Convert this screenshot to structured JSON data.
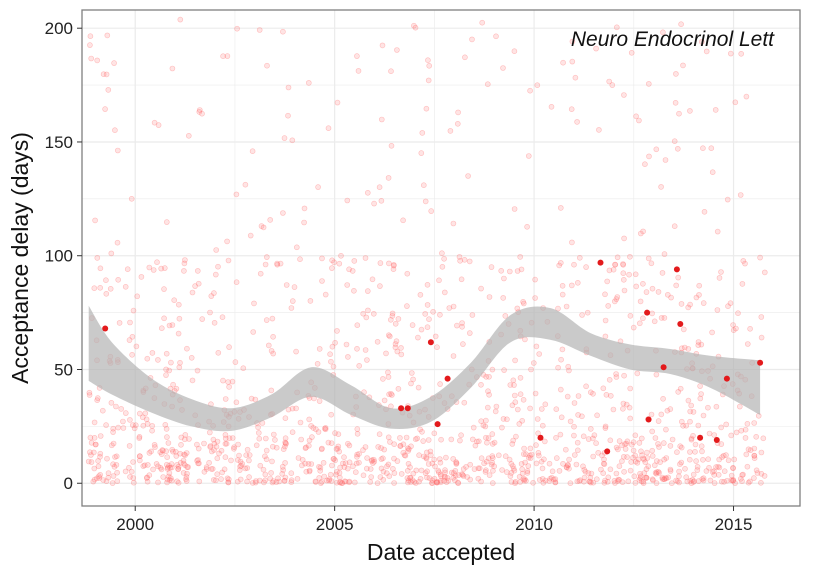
{
  "chart_data": {
    "type": "scatter",
    "title": "",
    "annotation": "Neuro Endocrinol Lett",
    "xlabel": "Date accepted",
    "ylabel": "Acceptance delay (days)",
    "x_range": [
      "1998-09-01",
      "2016-09-01"
    ],
    "ylim": [
      -10,
      208
    ],
    "x_ticks": [
      "2000",
      "2005",
      "2010",
      "2015"
    ],
    "y_ticks": [
      0,
      50,
      100,
      150,
      200
    ],
    "grid": true,
    "legend": "none",
    "colors": {
      "background_points": "#ff6b6b",
      "highlight_points": "#e31a1c",
      "smooth_band": "#b3b3b3",
      "grid": "#ebebeb",
      "panel_border": "#7f7f7f"
    },
    "series": [
      {
        "role": "highlighted",
        "points": [
          {
            "date": "1999-04-01",
            "delay": 68
          },
          {
            "date": "2006-09-01",
            "delay": 33
          },
          {
            "date": "2006-11-01",
            "delay": 33
          },
          {
            "date": "2007-06-01",
            "delay": 62
          },
          {
            "date": "2007-08-01",
            "delay": 26
          },
          {
            "date": "2007-11-01",
            "delay": 46
          },
          {
            "date": "2010-03-01",
            "delay": 20
          },
          {
            "date": "2011-09-01",
            "delay": 97
          },
          {
            "date": "2011-11-01",
            "delay": 14
          },
          {
            "date": "2012-11-01",
            "delay": 75
          },
          {
            "date": "2012-11-15",
            "delay": 28
          },
          {
            "date": "2013-04-01",
            "delay": 51
          },
          {
            "date": "2013-08-01",
            "delay": 94
          },
          {
            "date": "2013-09-01",
            "delay": 70
          },
          {
            "date": "2014-03-01",
            "delay": 20
          },
          {
            "date": "2014-08-01",
            "delay": 19
          },
          {
            "date": "2014-11-01",
            "delay": 46
          },
          {
            "date": "2015-09-01",
            "delay": 53
          }
        ]
      }
    ],
    "smooth_band": [
      {
        "date": "1998-11-01",
        "lower": 45,
        "upper": 78
      },
      {
        "date": "1999-06-01",
        "lower": 39,
        "upper": 62
      },
      {
        "date": "2000-06-01",
        "lower": 31,
        "upper": 46
      },
      {
        "date": "2001-06-01",
        "lower": 25,
        "upper": 37
      },
      {
        "date": "2002-06-01",
        "lower": 23,
        "upper": 33
      },
      {
        "date": "2003-06-01",
        "lower": 29,
        "upper": 39
      },
      {
        "date": "2004-06-01",
        "lower": 38,
        "upper": 51
      },
      {
        "date": "2005-06-01",
        "lower": 30,
        "upper": 43
      },
      {
        "date": "2006-06-01",
        "lower": 24,
        "upper": 33
      },
      {
        "date": "2007-06-01",
        "lower": 27,
        "upper": 38
      },
      {
        "date": "2008-06-01",
        "lower": 42,
        "upper": 53
      },
      {
        "date": "2009-06-01",
        "lower": 62,
        "upper": 74
      },
      {
        "date": "2010-06-01",
        "lower": 63,
        "upper": 77
      },
      {
        "date": "2011-06-01",
        "lower": 56,
        "upper": 66
      },
      {
        "date": "2012-06-01",
        "lower": 50,
        "upper": 61
      },
      {
        "date": "2013-06-01",
        "lower": 48,
        "upper": 59
      },
      {
        "date": "2014-06-01",
        "lower": 42,
        "upper": 56
      },
      {
        "date": "2015-09-01",
        "lower": 30,
        "upper": 54
      }
    ]
  }
}
